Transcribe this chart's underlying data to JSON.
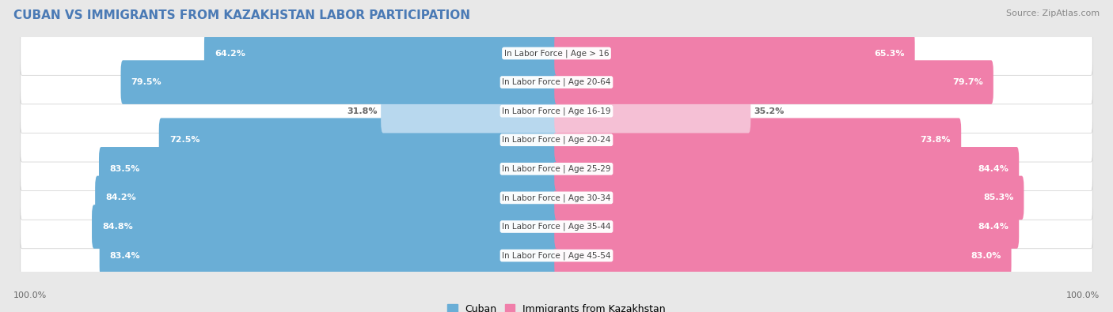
{
  "title": "CUBAN VS IMMIGRANTS FROM KAZAKHSTAN LABOR PARTICIPATION",
  "source": "Source: ZipAtlas.com",
  "categories": [
    "In Labor Force | Age > 16",
    "In Labor Force | Age 20-64",
    "In Labor Force | Age 16-19",
    "In Labor Force | Age 20-24",
    "In Labor Force | Age 25-29",
    "In Labor Force | Age 30-34",
    "In Labor Force | Age 35-44",
    "In Labor Force | Age 45-54"
  ],
  "cuban_values": [
    64.2,
    79.5,
    31.8,
    72.5,
    83.5,
    84.2,
    84.8,
    83.4
  ],
  "kazakh_values": [
    65.3,
    79.7,
    35.2,
    73.8,
    84.4,
    85.3,
    84.4,
    83.0
  ],
  "cuban_color": "#6aaed6",
  "cuban_color_light": "#b8d8ee",
  "kazakh_color": "#f07faa",
  "kazakh_color_light": "#f5c0d5",
  "label_color_dark": "#666666",
  "bg_color": "#e8e8e8",
  "row_bg": "#f5f5f5",
  "max_val": 100.0,
  "legend_cuban": "Cuban",
  "legend_kazakh": "Immigrants from Kazakhstan",
  "title_color": "#4a7ab5",
  "source_color": "#888888"
}
